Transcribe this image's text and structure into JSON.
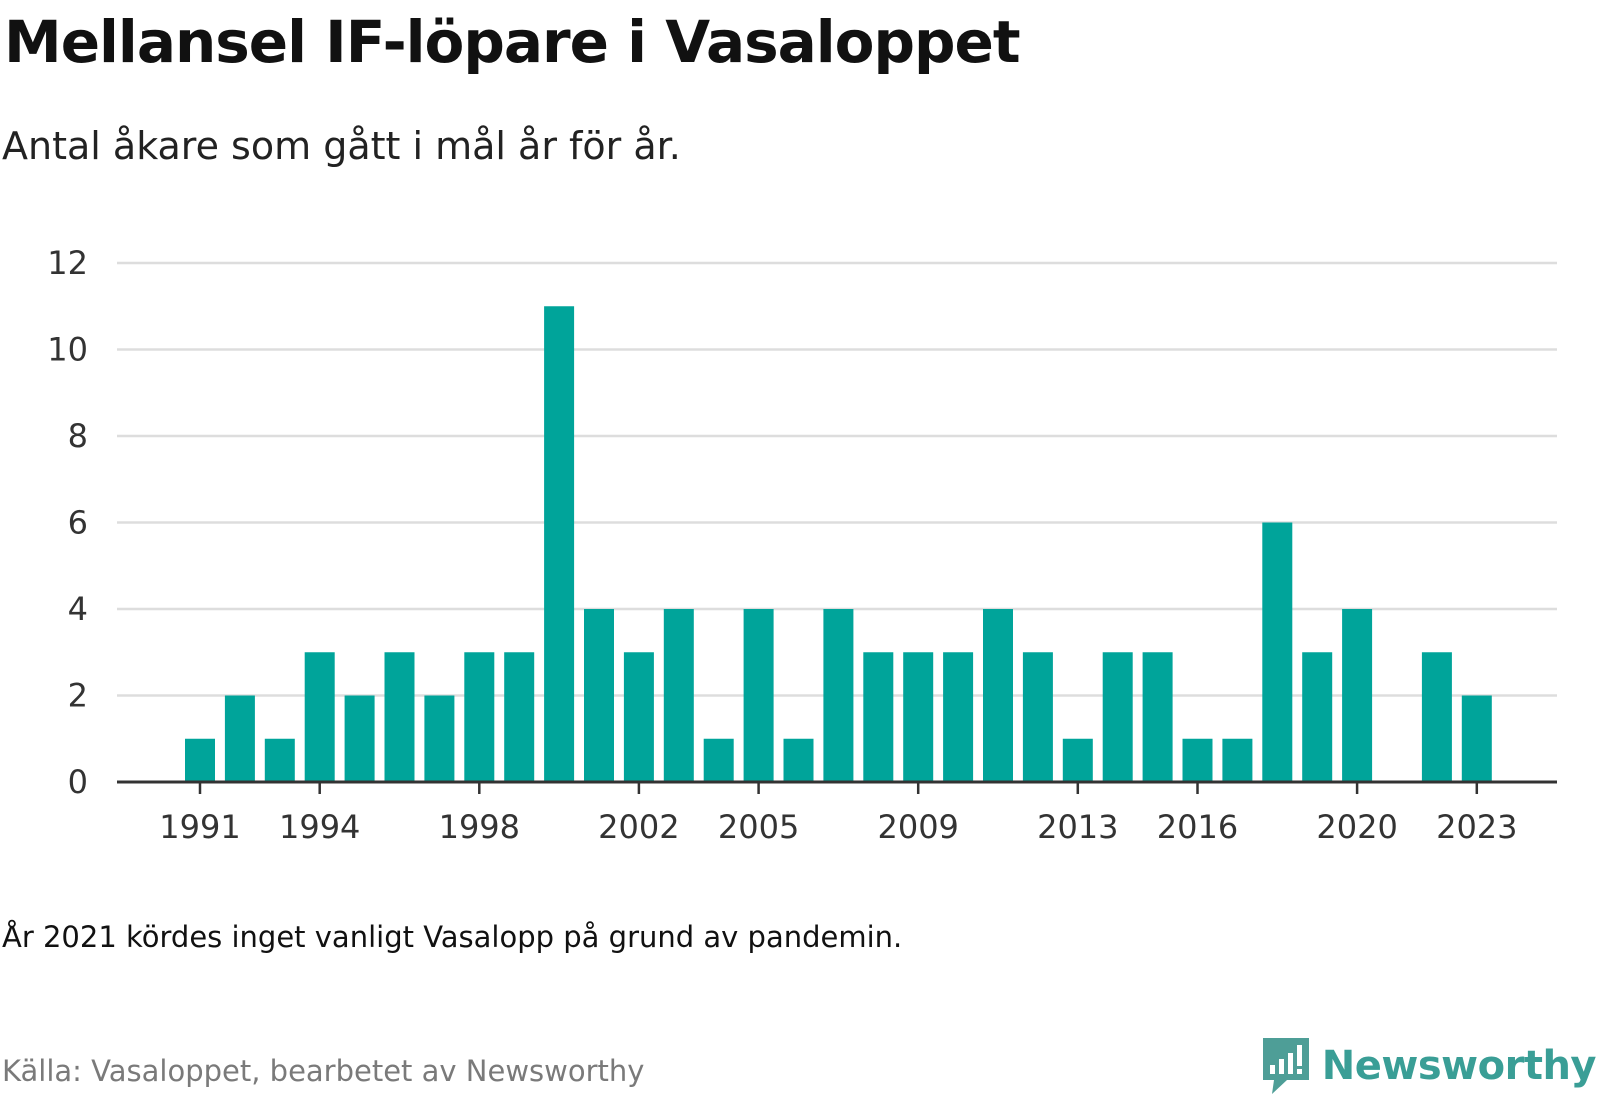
{
  "title": "Mellansel IF-löpare i Vasaloppet",
  "subtitle": "Antal åkare som gått i mål år för år.",
  "note": "År 2021 kördes inget vanligt Vasalopp på grund av pandemin.",
  "source": "Källa: Vasaloppet, bearbetet av Newsworthy",
  "brand": {
    "name": "Newsworthy",
    "logo_icon": "newsworthy-logo-icon"
  },
  "colors": {
    "bar": "#00A49A",
    "grid": "#dddddd",
    "axis": "#333333",
    "brand": "#3A9E96",
    "logo_bg": "#4E9E97"
  },
  "chart_data": {
    "type": "bar",
    "categories": [
      1991,
      1992,
      1993,
      1994,
      1995,
      1996,
      1997,
      1998,
      1999,
      2000,
      2001,
      2002,
      2003,
      2004,
      2005,
      2006,
      2007,
      2008,
      2009,
      2010,
      2011,
      2012,
      2013,
      2014,
      2015,
      2016,
      2017,
      2018,
      2019,
      2020,
      2021,
      2022,
      2023
    ],
    "values": [
      1,
      2,
      1,
      3,
      2,
      3,
      2,
      3,
      3,
      11,
      4,
      3,
      4,
      1,
      4,
      1,
      4,
      3,
      3,
      3,
      4,
      3,
      1,
      3,
      3,
      1,
      1,
      6,
      3,
      4,
      0,
      3,
      2
    ],
    "x_tick_labels": [
      "1991",
      "1994",
      "1998",
      "2002",
      "2005",
      "2009",
      "2013",
      "2016",
      "2020",
      "2023"
    ],
    "y_ticks": [
      0,
      2,
      4,
      6,
      8,
      10,
      12
    ],
    "ylim": [
      0,
      12
    ],
    "xlabel": "",
    "ylabel": "",
    "grid": true
  }
}
